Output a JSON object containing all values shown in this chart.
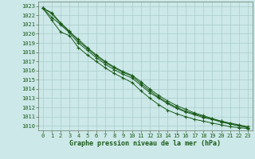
{
  "bg_color": "#cce8e8",
  "grid_color": "#aacccc",
  "line_color": "#1a5c1a",
  "marker_color": "#1a5c1a",
  "xlabel": "Graphe pression niveau de la mer (hPa)",
  "xlabel_fontsize": 6.0,
  "tick_fontsize": 5.0,
  "ylim": [
    1009.5,
    1023.5
  ],
  "xlim": [
    -0.5,
    23.5
  ],
  "yticks": [
    1010,
    1011,
    1012,
    1013,
    1014,
    1015,
    1016,
    1017,
    1018,
    1019,
    1020,
    1021,
    1022,
    1023
  ],
  "xticks": [
    0,
    1,
    2,
    3,
    4,
    5,
    6,
    7,
    8,
    9,
    10,
    11,
    12,
    13,
    14,
    15,
    16,
    17,
    18,
    19,
    20,
    21,
    22,
    23
  ],
  "series": [
    [
      1022.8,
      1022.2,
      1021.1,
      1020.2,
      1019.4,
      1018.5,
      1017.7,
      1017.0,
      1016.4,
      1015.9,
      1015.5,
      1014.8,
      1014.0,
      1013.3,
      1012.7,
      1012.2,
      1011.8,
      1011.4,
      1011.1,
      1010.8,
      1010.5,
      1010.3,
      1010.1,
      1009.9
    ],
    [
      1022.8,
      1021.8,
      1021.0,
      1020.1,
      1019.0,
      1018.2,
      1017.4,
      1016.7,
      1016.1,
      1015.6,
      1015.2,
      1014.4,
      1013.6,
      1013.0,
      1012.4,
      1011.9,
      1011.5,
      1011.2,
      1010.9,
      1010.7,
      1010.4,
      1010.2,
      1010.0,
      1009.8
    ],
    [
      1022.8,
      1021.5,
      1020.2,
      1019.8,
      1018.5,
      1017.7,
      1017.0,
      1016.3,
      1015.7,
      1015.2,
      1014.7,
      1013.8,
      1013.0,
      1012.3,
      1011.7,
      1011.3,
      1011.0,
      1010.7,
      1010.5,
      1010.3,
      1010.1,
      1009.9,
      1009.8,
      1009.7
    ],
    [
      1022.8,
      1022.3,
      1021.2,
      1020.3,
      1019.2,
      1018.4,
      1017.6,
      1016.9,
      1016.3,
      1015.8,
      1015.4,
      1014.6,
      1013.8,
      1013.1,
      1012.5,
      1012.0,
      1011.6,
      1011.3,
      1011.0,
      1010.7,
      1010.5,
      1010.2,
      1010.0,
      1009.8
    ]
  ]
}
